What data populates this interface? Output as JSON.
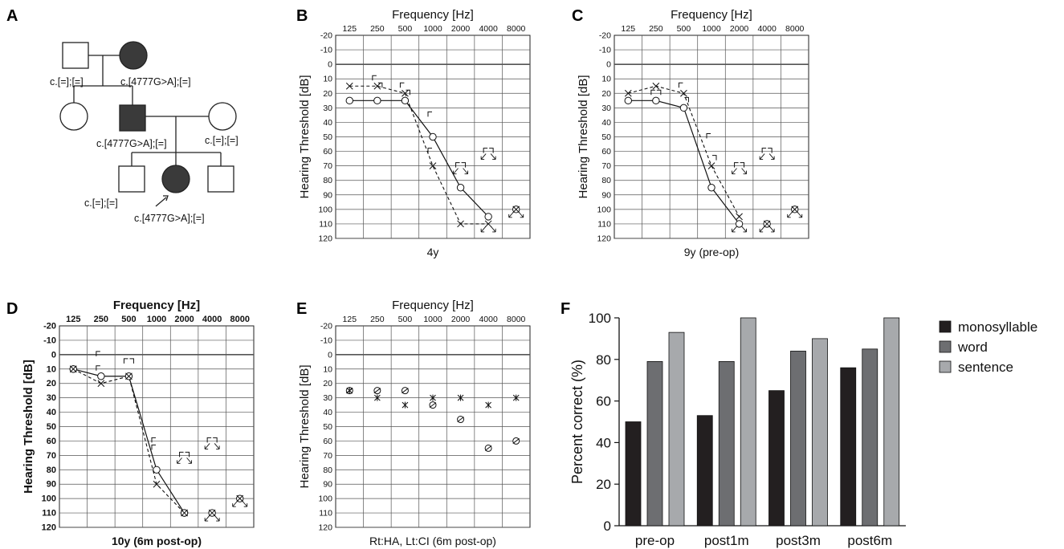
{
  "panel_letters": {
    "a": "A",
    "b": "B",
    "c": "C",
    "d": "D",
    "e": "E",
    "f": "F"
  },
  "pedigree": {
    "genotypes": {
      "grandfather": "c.[=];[=]",
      "grandmother": "c.[4777G>A];[=]",
      "father": "c.[4777G>A];[=]",
      "mother": "c.[=];[=]",
      "brother": "c.[=];[=]",
      "proband": "c.[4777G>A];[=]"
    },
    "affected_color": "#3a3a3a"
  },
  "audiograms": {
    "frequencies": [
      "125",
      "250",
      "500",
      "1000",
      "2000",
      "4000",
      "8000"
    ],
    "db_ticks": [
      "-20",
      "-10",
      "0",
      "10",
      "20",
      "30",
      "40",
      "50",
      "60",
      "70",
      "80",
      "90",
      "100",
      "110",
      "120"
    ],
    "x_title": "Frequency [Hz]",
    "y_title": "Hearing Threshold [dB]"
  },
  "chart_data": [
    {
      "panel": "B",
      "type": "line",
      "caption": "4y",
      "x": [
        "125",
        "250",
        "500",
        "1000",
        "2000",
        "4000",
        "8000"
      ],
      "right_ac": [
        25,
        25,
        25,
        50,
        85,
        105,
        null
      ],
      "left_ac": [
        15,
        15,
        20,
        70,
        110,
        110,
        null
      ],
      "bone_left": [
        [
          250,
          10
        ],
        [
          500,
          15
        ],
        [
          1000,
          35
        ],
        [
          1000,
          60
        ],
        [
          2000,
          70
        ],
        [
          4000,
          60
        ]
      ],
      "bone_right": [
        [
          250,
          15
        ],
        [
          500,
          20
        ],
        [
          2000,
          70
        ],
        [
          4000,
          60
        ]
      ],
      "scale_out": [
        [
          2000,
          70
        ],
        [
          4000,
          60
        ],
        [
          4000,
          110
        ],
        [
          8000,
          100
        ]
      ],
      "overlap": [
        [
          8000,
          100
        ]
      ],
      "ylim": [
        -20,
        120
      ]
    },
    {
      "panel": "C",
      "type": "line",
      "caption": "9y (pre-op)",
      "x": [
        "125",
        "250",
        "500",
        "1000",
        "2000",
        "4000",
        "8000"
      ],
      "right_ac": [
        25,
        25,
        30,
        85,
        110,
        null,
        null
      ],
      "left_ac": [
        20,
        15,
        20,
        70,
        105,
        null,
        null
      ],
      "bone_left": [
        [
          250,
          20
        ],
        [
          500,
          15
        ],
        [
          1000,
          50
        ],
        [
          2000,
          70
        ],
        [
          4000,
          60
        ]
      ],
      "bone_right": [
        [
          250,
          20
        ],
        [
          500,
          25
        ],
        [
          1000,
          65
        ],
        [
          2000,
          70
        ],
        [
          4000,
          60
        ]
      ],
      "scale_out": [
        [
          2000,
          70
        ],
        [
          2000,
          110
        ],
        [
          4000,
          60
        ],
        [
          4000,
          110
        ],
        [
          8000,
          100
        ]
      ],
      "overlap": [
        [
          4000,
          110
        ],
        [
          8000,
          100
        ]
      ],
      "ylim": [
        -20,
        120
      ]
    },
    {
      "panel": "D",
      "type": "line",
      "caption": "10y (6m post-op)",
      "x": [
        "125",
        "250",
        "500",
        "1000",
        "2000",
        "4000",
        "8000"
      ],
      "right_ac": [
        10,
        15,
        15,
        80,
        110,
        null,
        null
      ],
      "left_ac": [
        10,
        20,
        15,
        90,
        110,
        null,
        null
      ],
      "bone_left": [
        [
          250,
          10
        ],
        [
          250,
          0
        ],
        [
          500,
          5
        ],
        [
          1000,
          60
        ],
        [
          1000,
          65
        ],
        [
          2000,
          70
        ],
        [
          4000,
          60
        ]
      ],
      "bone_right": [
        [
          500,
          5
        ],
        [
          2000,
          70
        ],
        [
          4000,
          60
        ]
      ],
      "scale_out": [
        [
          2000,
          70
        ],
        [
          4000,
          60
        ],
        [
          4000,
          110
        ],
        [
          8000,
          100
        ]
      ],
      "overlap": [
        [
          125,
          10
        ],
        [
          2000,
          110
        ],
        [
          4000,
          110
        ],
        [
          8000,
          100
        ]
      ],
      "ylim": [
        -20,
        120
      ]
    },
    {
      "panel": "E",
      "type": "scatter",
      "caption": "Rt:HA, Lt:CI (6m post-op)",
      "x": [
        "125",
        "250",
        "500",
        "1000",
        "2000",
        "4000",
        "8000"
      ],
      "aided_right": [
        25,
        25,
        25,
        35,
        45,
        65,
        60
      ],
      "aided_left": [
        25,
        30,
        35,
        30,
        30,
        35,
        30
      ],
      "ylim": [
        -20,
        120
      ]
    },
    {
      "panel": "F",
      "type": "bar",
      "categories": [
        "pre-op",
        "post1m",
        "post3m",
        "post6m"
      ],
      "series": [
        {
          "name": "monosyllable",
          "values": [
            50,
            53,
            65,
            76
          ],
          "color": "#231f20"
        },
        {
          "name": "word",
          "values": [
            79,
            79,
            84,
            85
          ],
          "color": "#6d6e71"
        },
        {
          "name": "sentence",
          "values": [
            93,
            100,
            90,
            100
          ],
          "color": "#a7a9ac"
        }
      ],
      "ylabel": "Percent correct (%)",
      "yticks": [
        "0",
        "20",
        "40",
        "60",
        "80",
        "100"
      ],
      "ylim": [
        0,
        100
      ],
      "legend": "right"
    }
  ]
}
